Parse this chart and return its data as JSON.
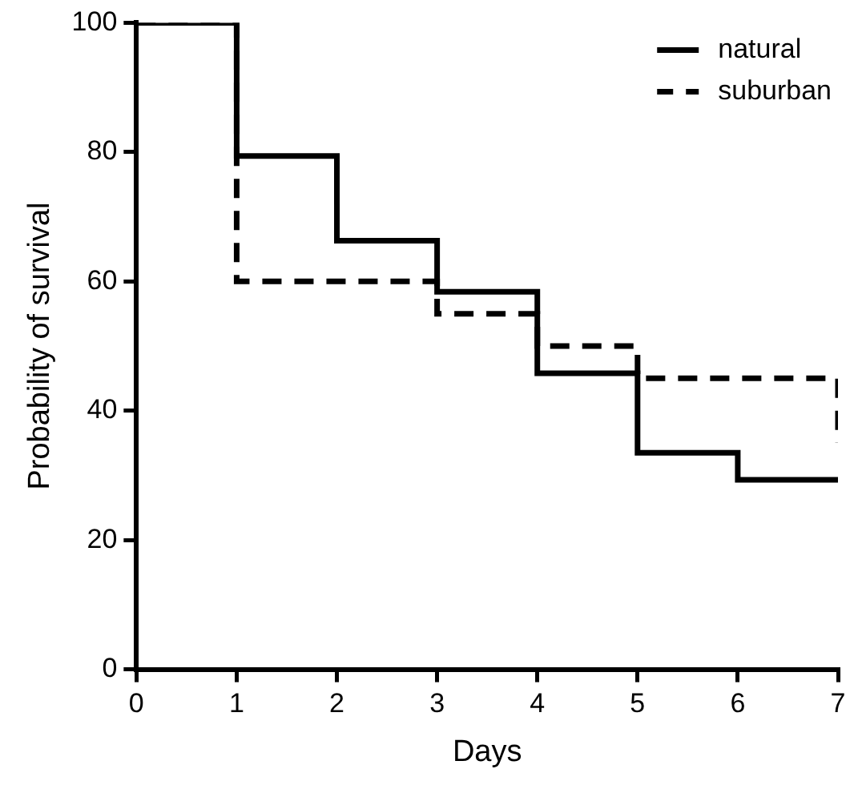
{
  "chart_data": {
    "type": "step",
    "xlabel": "Days",
    "ylabel": "Probability of survival",
    "xlim": [
      0,
      7
    ],
    "xticks": [
      0,
      1,
      2,
      3,
      4,
      5,
      6,
      7
    ],
    "ylim": [
      0,
      100
    ],
    "yticks": [
      0,
      20,
      40,
      60,
      80,
      100
    ],
    "grid": false,
    "legend": "top right",
    "marker": "none",
    "series": [
      {
        "name": "natural",
        "color": "#000000",
        "line_style": "solid",
        "x": [
          0,
          1,
          2,
          3,
          4,
          5,
          6,
          7
        ],
        "values": [
          100,
          79.4,
          66.3,
          58.4,
          45.8,
          33.5,
          29.3,
          29.3
        ]
      },
      {
        "name": "suburban",
        "color": "#000000",
        "line_style": "dashed",
        "x": [
          0,
          1,
          3,
          4,
          5,
          7
        ],
        "values": [
          100,
          60,
          55,
          50,
          45,
          35
        ]
      }
    ]
  }
}
